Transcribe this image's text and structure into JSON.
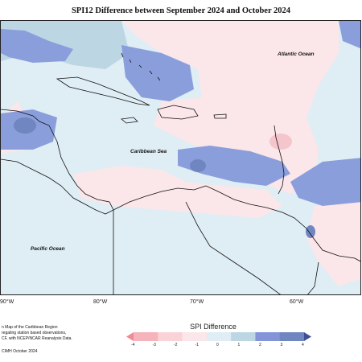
{
  "title": "SPI12 Difference between September 2024 and October 2024",
  "ocean_labels": {
    "atlantic": "Atlantic Ocean",
    "caribbean": "Caribbean Sea",
    "pacific": "Pacific Ocean"
  },
  "longitude_ticks": [
    "90°W",
    "80°W",
    "70°W",
    "60°W"
  ],
  "footnote_lines": [
    "n Map of the Caribbean Region",
    "regating station based observations,",
    "CF, with NCEP/NCAR Reanalysis Data."
  ],
  "credit": "CIMH October 2024",
  "legend": {
    "title": "SPI Difference",
    "ticks": [
      "-4",
      "-3",
      "-2",
      "-1",
      "0",
      "1",
      "2",
      "3",
      "4"
    ],
    "colors": [
      "#f08a96",
      "#f5b3bc",
      "#f9d3d8",
      "#fbe6e9",
      "#dfeef4",
      "#bcd6e4",
      "#8395d8",
      "#6f86c0",
      "#3f4f96"
    ]
  },
  "colors": {
    "negative_light": "#fbe6e9",
    "negative_mid": "#f9d3d8",
    "neutral": "#dfeef4",
    "positive_light": "#bcd6e4",
    "positive_mid": "#8a9edc",
    "positive_dark": "#6f86c0"
  }
}
